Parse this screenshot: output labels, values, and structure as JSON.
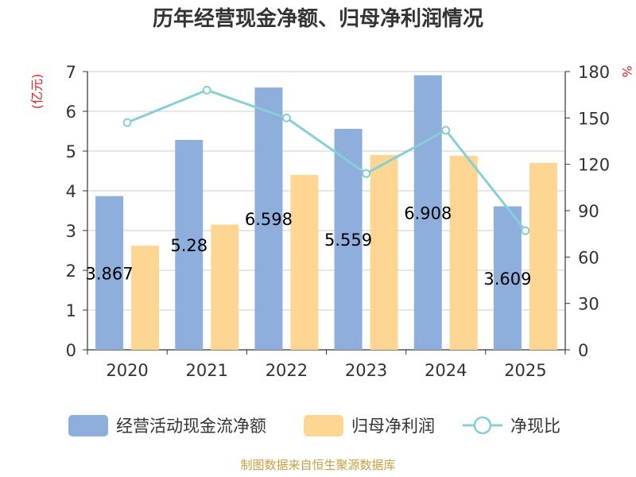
{
  "chart_data": {
    "type": "bar",
    "title": "历年经营现金净额、归母净利润情况",
    "categories": [
      "2020",
      "2021",
      "2022",
      "2023",
      "2024",
      "2025"
    ],
    "left_unit": "(亿元)",
    "right_unit": "%",
    "ylim": [
      0,
      7
    ],
    "y2lim": [
      0,
      180
    ],
    "y_ticks": [
      "0",
      "1",
      "2",
      "3",
      "4",
      "5",
      "6",
      "7"
    ],
    "y2_ticks": [
      "0",
      "30",
      "60",
      "90",
      "120",
      "150",
      "180"
    ],
    "grid": true,
    "legend_position": "bottom",
    "series": [
      {
        "name": "经营活动现金流净额",
        "kind": "bar",
        "axis": "left",
        "color": "#8eaedc",
        "values": [
          3.867,
          5.28,
          6.598,
          5.559,
          6.908,
          3.609
        ],
        "labels": [
          "3.867",
          "5.28",
          "6.598",
          "5.559",
          "6.908",
          "3.609"
        ]
      },
      {
        "name": "归母净利润",
        "kind": "bar",
        "axis": "left",
        "color": "#fdd694",
        "values": [
          2.62,
          3.15,
          4.4,
          4.9,
          4.88,
          4.7
        ]
      },
      {
        "name": "净现比",
        "kind": "line",
        "axis": "right",
        "color": "#86d0d4",
        "values": [
          147,
          168,
          150,
          114,
          142,
          77
        ]
      }
    ],
    "source": "制图数据来自恒生聚源数据库"
  }
}
